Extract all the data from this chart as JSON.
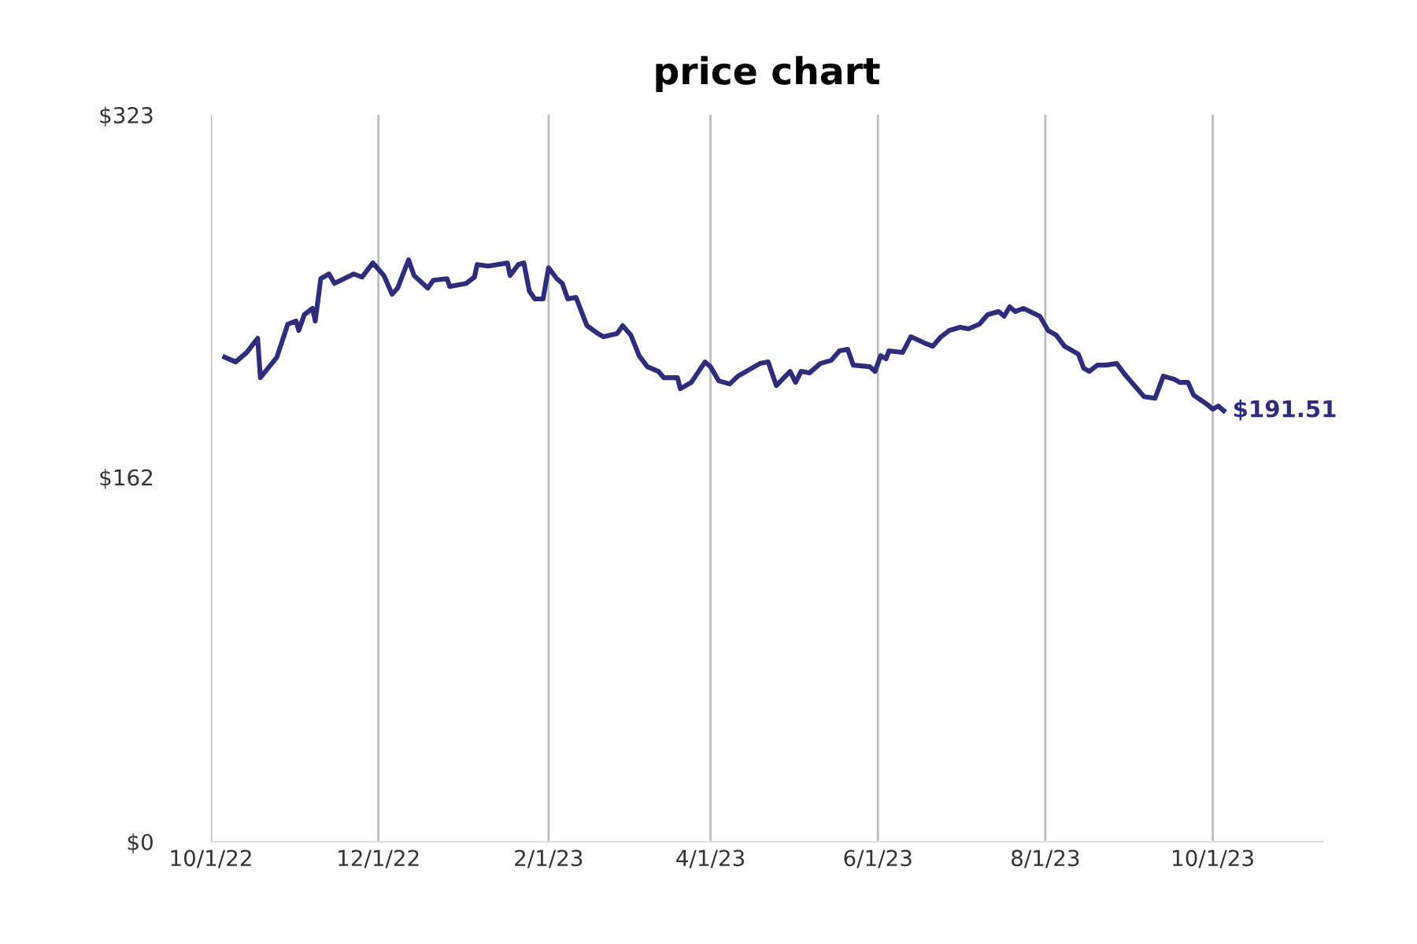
{
  "chart_data": {
    "type": "line",
    "title": "price chart",
    "x": [
      "2022-10-06",
      "2022-10-10",
      "2022-10-14",
      "2022-10-18",
      "2022-10-19",
      "2022-10-25",
      "2022-10-29",
      "2022-11-01",
      "2022-11-02",
      "2022-11-04",
      "2022-11-07",
      "2022-11-08",
      "2022-11-10",
      "2022-11-13",
      "2022-11-15",
      "2022-11-22",
      "2022-11-25",
      "2022-11-29",
      "2022-12-03",
      "2022-12-06",
      "2022-12-08",
      "2022-12-12",
      "2022-12-14",
      "2022-12-19",
      "2022-12-21",
      "2022-12-26",
      "2022-12-27",
      "2023-01-02",
      "2023-01-05",
      "2023-01-06",
      "2023-01-10",
      "2023-01-17",
      "2023-01-18",
      "2023-01-21",
      "2023-01-23",
      "2023-01-25",
      "2023-01-27",
      "2023-01-30",
      "2023-02-01",
      "2023-02-04",
      "2023-02-06",
      "2023-02-08",
      "2023-02-11",
      "2023-02-13",
      "2023-02-15",
      "2023-02-19",
      "2023-02-21",
      "2023-02-26",
      "2023-02-28",
      "2023-03-03",
      "2023-03-06",
      "2023-03-09",
      "2023-03-13",
      "2023-03-15",
      "2023-03-20",
      "2023-03-21",
      "2023-03-25",
      "2023-03-30",
      "2023-04-01",
      "2023-04-04",
      "2023-04-08",
      "2023-04-11",
      "2023-04-19",
      "2023-04-22",
      "2023-04-25",
      "2023-04-30",
      "2023-05-02",
      "2023-05-04",
      "2023-05-07",
      "2023-05-11",
      "2023-05-15",
      "2023-05-18",
      "2023-05-21",
      "2023-05-23",
      "2023-05-29",
      "2023-05-31",
      "2023-06-02",
      "2023-06-04",
      "2023-06-05",
      "2023-06-10",
      "2023-06-13",
      "2023-06-18",
      "2023-06-21",
      "2023-06-24",
      "2023-06-27",
      "2023-07-01",
      "2023-07-04",
      "2023-07-08",
      "2023-07-11",
      "2023-07-15",
      "2023-07-17",
      "2023-07-19",
      "2023-07-21",
      "2023-07-24",
      "2023-07-30",
      "2023-08-02",
      "2023-08-05",
      "2023-08-08",
      "2023-08-13",
      "2023-08-15",
      "2023-08-17",
      "2023-08-20",
      "2023-08-23",
      "2023-08-27",
      "2023-08-30",
      "2023-09-02",
      "2023-09-06",
      "2023-09-10",
      "2023-09-13",
      "2023-09-17",
      "2023-09-19",
      "2023-09-22",
      "2023-09-24",
      "2023-09-29",
      "2023-10-01",
      "2023-10-03",
      "2023-10-05"
    ],
    "series": [
      {
        "color": "#2e2d7a",
        "values": [
          215.3,
          213.2,
          217.4,
          223.7,
          206.2,
          215.3,
          230.0,
          231.4,
          227.2,
          234.2,
          237.0,
          231.4,
          250.2,
          252.3,
          248.1,
          252.3,
          250.9,
          257.2,
          251.6,
          243.3,
          246.0,
          258.6,
          251.6,
          246.0,
          249.5,
          250.2,
          246.7,
          248.1,
          250.9,
          256.5,
          255.8,
          257.2,
          251.6,
          256.5,
          257.2,
          244.7,
          241.2,
          241.2,
          255.1,
          250.2,
          248.1,
          241.2,
          241.9,
          235.6,
          229.3,
          225.8,
          224.4,
          225.8,
          229.3,
          225.1,
          216.0,
          211.1,
          209.0,
          206.2,
          206.2,
          201.3,
          204.1,
          213.2,
          211.1,
          204.8,
          203.4,
          206.9,
          212.5,
          213.2,
          202.7,
          209.0,
          204.1,
          209.0,
          208.3,
          212.5,
          213.9,
          218.1,
          218.8,
          211.8,
          211.1,
          209.0,
          216.0,
          214.6,
          218.1,
          217.4,
          224.4,
          221.6,
          220.2,
          224.4,
          227.2,
          228.6,
          227.9,
          230.0,
          234.2,
          235.6,
          233.5,
          237.7,
          235.6,
          237.0,
          233.5,
          227.2,
          225.1,
          220.2,
          216.7,
          210.4,
          209.0,
          211.8,
          211.8,
          212.5,
          207.6,
          203.4,
          197.8,
          197.1,
          206.9,
          205.5,
          204.1,
          204.1,
          198.5,
          194.3,
          192.2,
          193.6,
          191.51
        ]
      }
    ],
    "xlim": [
      "2022-10-01",
      "2023-11-10"
    ],
    "xticks": [
      {
        "value": "2022-10-01",
        "label": "10/1/22"
      },
      {
        "value": "2022-12-01",
        "label": "12/1/22"
      },
      {
        "value": "2023-02-01",
        "label": "2/1/23"
      },
      {
        "value": "2023-04-01",
        "label": "4/1/23"
      },
      {
        "value": "2023-06-01",
        "label": "6/1/23"
      },
      {
        "value": "2023-08-01",
        "label": "8/1/23"
      },
      {
        "value": "2023-10-01",
        "label": "10/1/23"
      }
    ],
    "ylim": [
      0,
      323
    ],
    "yticks": [
      {
        "value": 0,
        "label": "$0"
      },
      {
        "value": 162,
        "label": "$162"
      },
      {
        "value": 323,
        "label": "$323"
      }
    ],
    "annotations": [
      {
        "text": "$191.51",
        "x": "2023-10-05",
        "y": 191.51
      }
    ],
    "grid": "x",
    "marker": "none",
    "line_style": "solid"
  }
}
